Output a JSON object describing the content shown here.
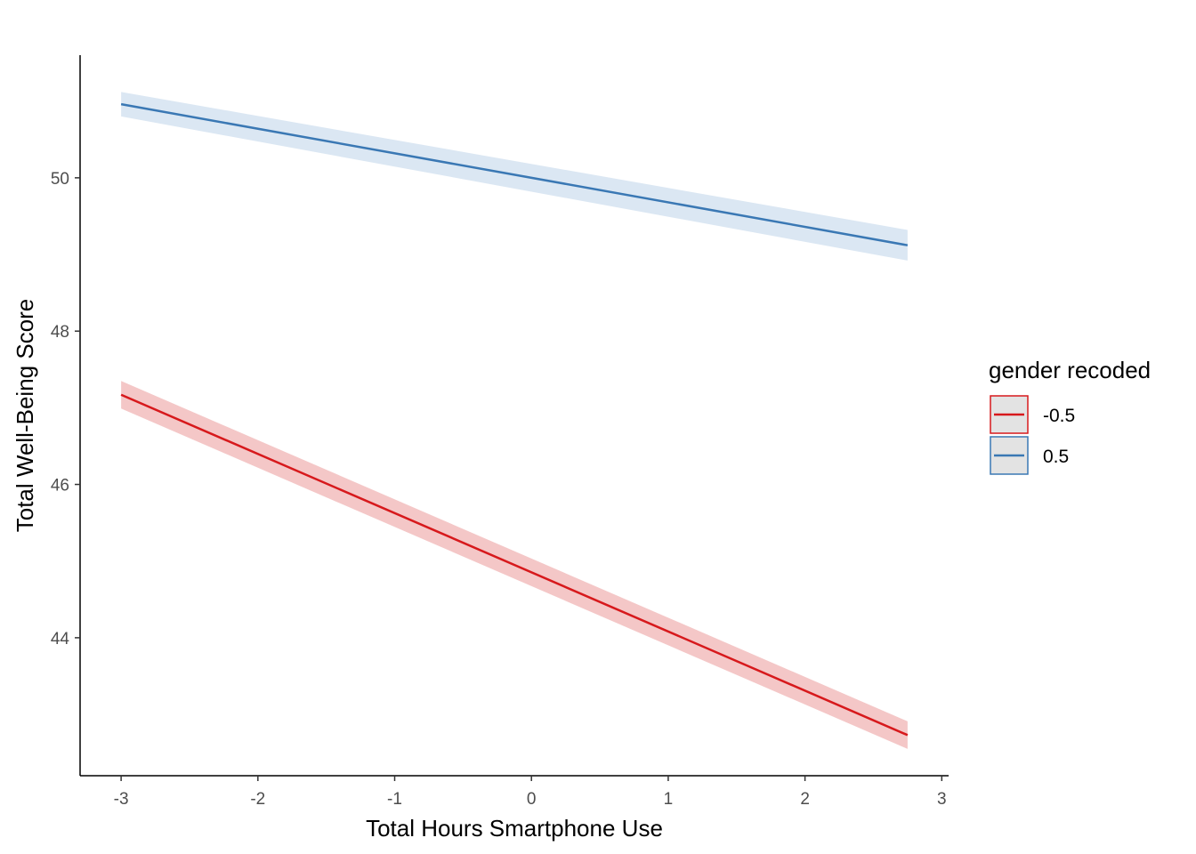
{
  "chart_data": {
    "type": "line",
    "xlabel": "Total Hours Smartphone Use",
    "ylabel": "Total Well-Being Score",
    "xlim": [
      -3.3,
      3.05
    ],
    "ylim": [
      42.2,
      51.6
    ],
    "x_ticks": [
      "-3",
      "-2",
      "-1",
      "0",
      "1",
      "2",
      "3"
    ],
    "y_ticks": [
      "44",
      "46",
      "48",
      "50"
    ],
    "grid": false,
    "legend": {
      "title": "gender recoded",
      "position": "right",
      "entries": [
        "-0.5",
        "0.5"
      ]
    },
    "series": [
      {
        "name": "-0.5",
        "color": "#d7191c",
        "fill": "#f4c7c7",
        "x": [
          -3.0,
          2.75
        ],
        "y": [
          47.17,
          42.73
        ],
        "ci_lower": [
          46.99,
          42.55
        ],
        "ci_upper": [
          47.35,
          42.91
        ]
      },
      {
        "name": "0.5",
        "color": "#3a78b4",
        "fill": "#dbe7f3",
        "x": [
          -3.0,
          2.75
        ],
        "y": [
          50.96,
          49.12
        ],
        "ci_lower": [
          50.8,
          48.92
        ],
        "ci_upper": [
          51.12,
          49.32
        ]
      }
    ]
  }
}
